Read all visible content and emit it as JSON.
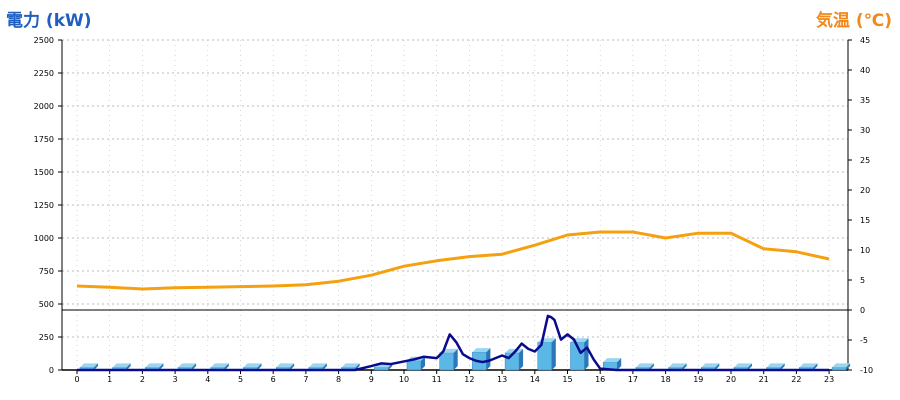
{
  "chart_data": {
    "type": "bar",
    "left_axis_title": "電力 (kW)",
    "right_axis_title": "気温 (℃)",
    "x_ticks": [
      "0",
      "1",
      "2",
      "3",
      "4",
      "5",
      "6",
      "7",
      "8",
      "9",
      "10",
      "11",
      "12",
      "13",
      "14",
      "15",
      "16",
      "17",
      "18",
      "19",
      "20",
      "21",
      "22",
      "23"
    ],
    "y_left_ticks": [
      "2500",
      "2250",
      "2000",
      "1750",
      "1500",
      "1250",
      "1000",
      "750",
      "500",
      "250",
      "0"
    ],
    "y_right_ticks": [
      "45",
      "40",
      "35",
      "30",
      "25",
      "20",
      "15",
      "10",
      "5",
      "0",
      "-5",
      "-10"
    ],
    "y_left_range": [
      0,
      2500
    ],
    "y_right_range": [
      -10,
      45
    ],
    "grid": true,
    "colors": {
      "bar": "#5bb8e6",
      "bar_dark": "#2a78b8",
      "power_line": "#0a0a8c",
      "temp_line": "#f5a00f",
      "grid": "#bbbbbb"
    },
    "series": [
      {
        "kind": "bar",
        "hours": [
          0,
          1,
          2,
          3,
          4,
          5,
          6,
          7,
          8,
          9,
          10,
          11,
          12,
          13,
          14,
          15,
          16,
          17,
          18,
          19,
          20,
          21,
          22,
          23
        ],
        "values": [
          20,
          20,
          20,
          20,
          20,
          20,
          20,
          20,
          20,
          20,
          70,
          130,
          135,
          130,
          210,
          210,
          60,
          20,
          20,
          20,
          20,
          20,
          20,
          20
        ]
      },
      {
        "kind": "line",
        "x": [
          0,
          1,
          2,
          3,
          4,
          5,
          6,
          7,
          8,
          8.5,
          9,
          9.3,
          9.6,
          10,
          10.3,
          10.6,
          11,
          11.2,
          11.4,
          11.6,
          11.8,
          12,
          12.2,
          12.4,
          12.6,
          12.8,
          13,
          13.2,
          13.4,
          13.6,
          13.8,
          14,
          14.2,
          14.4,
          14.5,
          14.6,
          14.8,
          15,
          15.2,
          15.4,
          15.6,
          15.8,
          16,
          16.5,
          17,
          18,
          19,
          20,
          21,
          22,
          23
        ],
        "values": [
          0,
          0,
          0,
          0,
          0,
          0,
          0,
          0,
          0,
          0,
          30,
          50,
          45,
          65,
          80,
          100,
          90,
          140,
          270,
          210,
          120,
          90,
          70,
          60,
          70,
          90,
          110,
          90,
          140,
          200,
          160,
          140,
          190,
          410,
          400,
          380,
          230,
          270,
          230,
          130,
          170,
          80,
          10,
          0,
          0,
          0,
          0,
          0,
          0,
          0,
          0
        ]
      },
      {
        "kind": "line",
        "x": [
          0,
          1,
          2,
          3,
          4,
          5,
          6,
          7,
          8,
          9,
          10,
          11,
          12,
          13,
          14,
          15,
          16,
          17,
          18,
          19,
          20,
          21,
          22,
          23
        ],
        "values": [
          4,
          3.8,
          3.5,
          3.7,
          3.8,
          3.9,
          4,
          4.2,
          4.8,
          5.8,
          7.3,
          8.2,
          8.9,
          9.3,
          10.8,
          12.5,
          13,
          13,
          12,
          12.8,
          12.8,
          10.2,
          9.7,
          8.5
        ]
      }
    ]
  }
}
